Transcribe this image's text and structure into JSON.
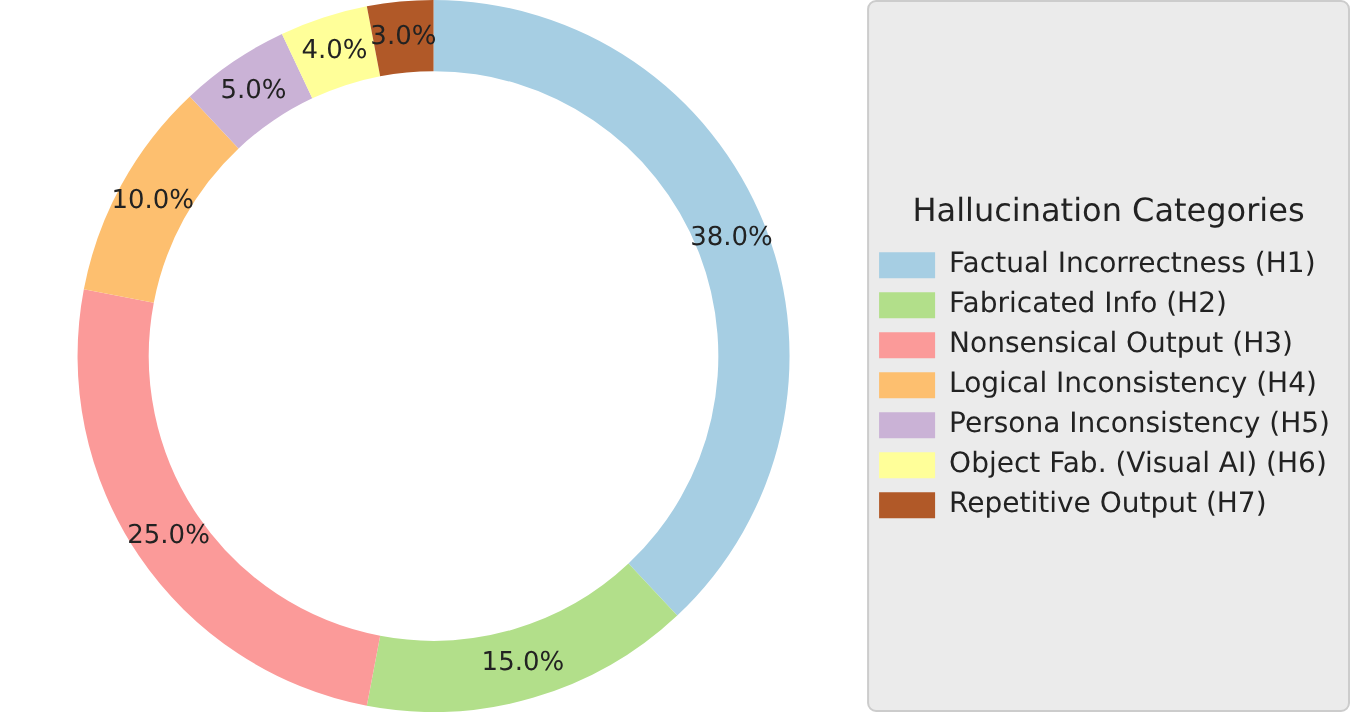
{
  "chart_data": {
    "type": "donut",
    "legend_title": "Hallucination Categories",
    "categories": [
      "Factual Incorrectness (H1)",
      "Fabricated Info (H2)",
      "Nonsensical Output (H3)",
      "Logical Inconsistency (H4)",
      "Persona Inconsistency (H5)",
      "Object Fab. (Visual AI) (H6)",
      "Repetitive Output (H7)"
    ],
    "values": [
      38,
      15,
      25,
      10,
      5,
      4,
      3
    ],
    "value_labels": [
      "38.0%",
      "15.0%",
      "25.0%",
      "10.0%",
      "5.0%",
      "4.0%",
      "3.0%"
    ],
    "colors": [
      "#a6cee3",
      "#b2df8a",
      "#fb9a99",
      "#fdbf6f",
      "#cab2d6",
      "#ffff99",
      "#b15928"
    ],
    "legend": "right"
  }
}
